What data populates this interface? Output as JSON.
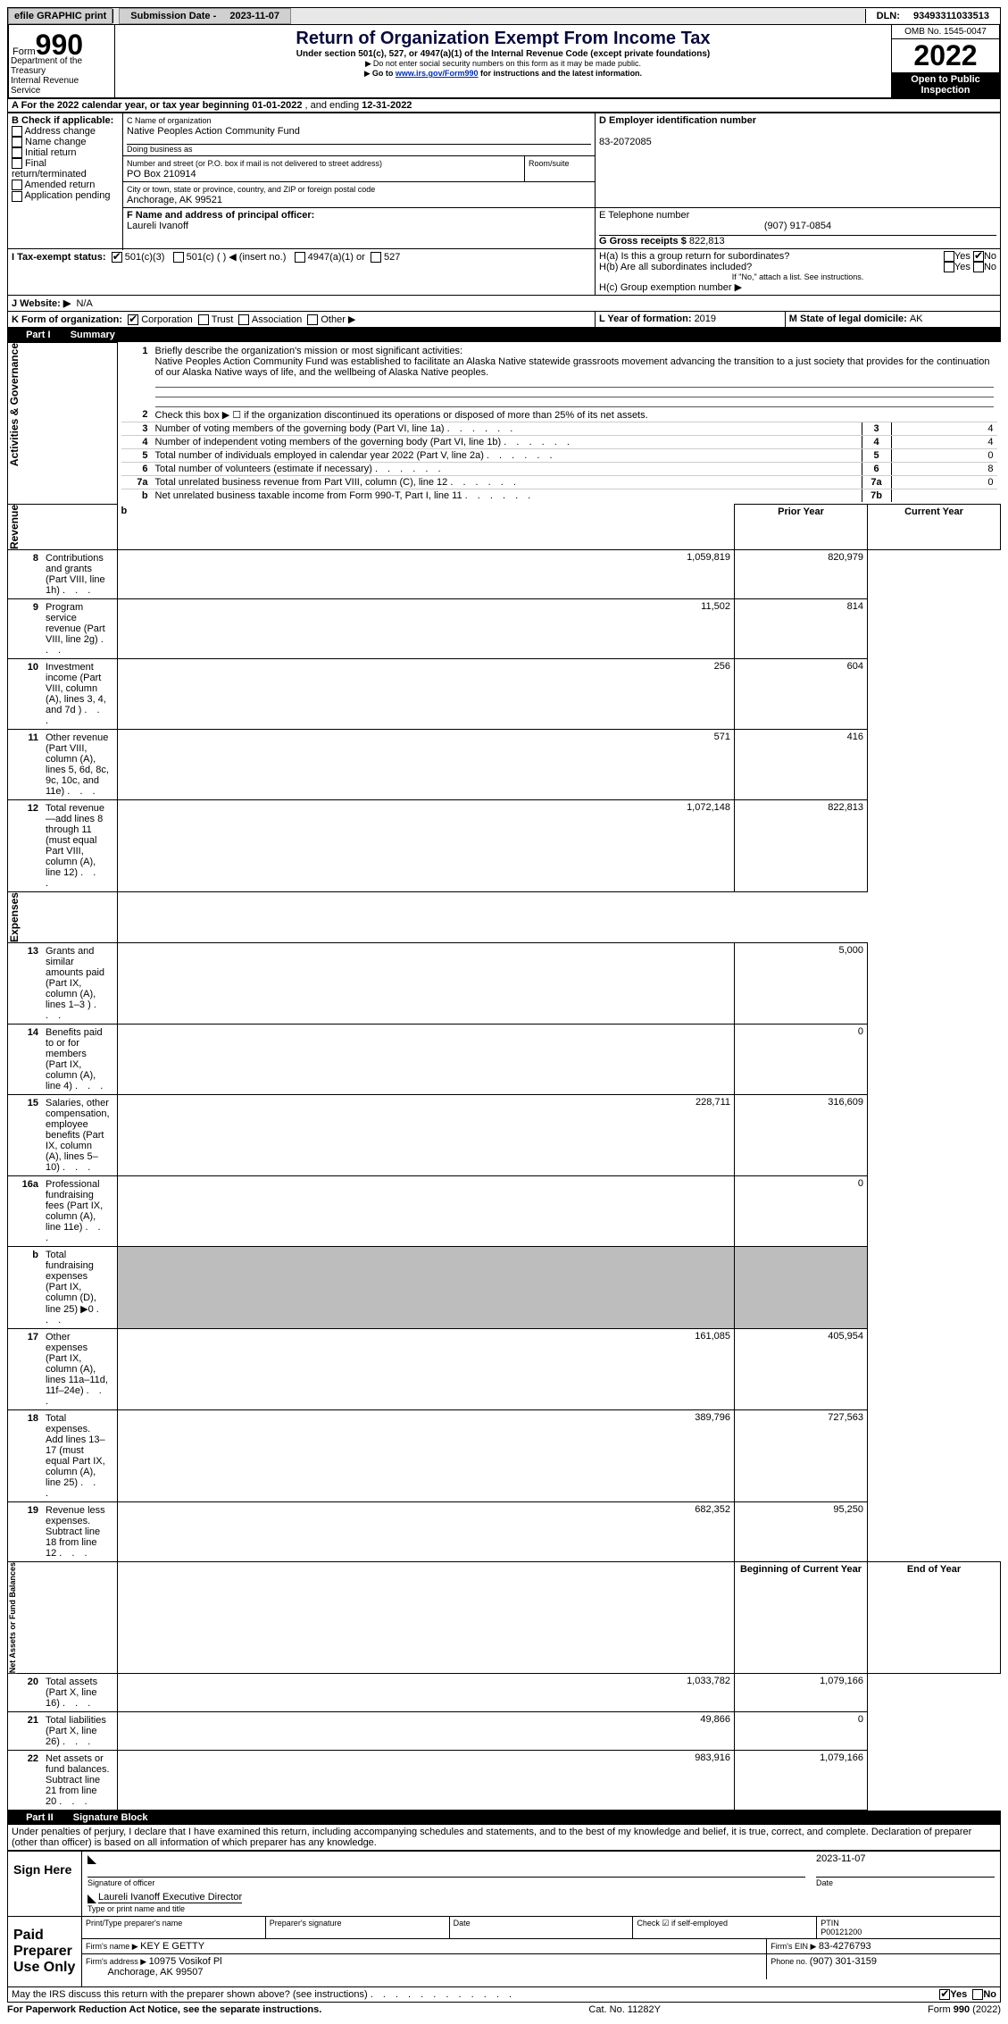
{
  "topbar": {
    "efile_label": "efile GRAPHIC print",
    "sub_label": "Submission Date - ",
    "sub_date": "2023-11-07",
    "dln_label": "DLN: ",
    "dln": "93493311033513"
  },
  "header": {
    "form_word": "Form",
    "form_num": "990",
    "dept": "Department of the Treasury\nInternal Revenue Service",
    "title": "Return of Organization Exempt From Income Tax",
    "subtitle": "Under section 501(c), 527, or 4947(a)(1) of the Internal Revenue Code (except private foundations)",
    "ssn_note": "Do not enter social security numbers on this form as it may be made public.",
    "goto_prefix": "Go to ",
    "goto_link": "www.irs.gov/Form990",
    "goto_suffix": " for instructions and the latest information.",
    "omb": "OMB No. 1545-0047",
    "year": "2022",
    "inspection": "Open to Public Inspection"
  },
  "periodline": {
    "a_label": "A For the 2022 calendar year, or tax year beginning ",
    "begin": "01-01-2022",
    "mid": " , and ending ",
    "end": "12-31-2022"
  },
  "boxB": {
    "title": "B Check if applicable:",
    "items": [
      "Address change",
      "Name change",
      "Initial return",
      "Final return/terminated",
      "Amended return",
      "Application pending"
    ]
  },
  "boxC": {
    "name_label": "C Name of organization",
    "org_name": "Native Peoples Action Community Fund",
    "dba_label": "Doing business as",
    "street_label": "Number and street (or P.O. box if mail is not delivered to street address)",
    "room_label": "Room/suite",
    "street": "PO Box 210914",
    "city_label": "City or town, state or province, country, and ZIP or foreign postal code",
    "city": "Anchorage, AK  99521"
  },
  "boxD": {
    "label": "D Employer identification number",
    "ein": "83-2072085"
  },
  "boxE": {
    "label": "E Telephone number",
    "phone": "(907) 917-0854"
  },
  "boxG": {
    "label": "G Gross receipts $ ",
    "val": "822,813"
  },
  "boxF": {
    "label": "F  Name and address of principal officer:",
    "name": "Laureli Ivanoff"
  },
  "boxH": {
    "ha_label": "H(a)  Is this a group return for subordinates?",
    "hb_label": "H(b)  Are all subordinates included?",
    "hb_note": "If \"No,\" attach a list. See instructions.",
    "hc_label": "H(c)  Group exemption number ▶",
    "yes": "Yes",
    "no": "No"
  },
  "boxI": {
    "label": "I  Tax-exempt status:",
    "opt1": "501(c)(3)",
    "opt2": "501(c) (  ) ◀ (insert no.)",
    "opt3": "4947(a)(1) or",
    "opt4": "527"
  },
  "boxJ": {
    "label": "J  Website: ▶",
    "val": "N/A"
  },
  "boxK": {
    "label": "K Form of organization:",
    "opts": [
      "Corporation",
      "Trust",
      "Association",
      "Other ▶"
    ]
  },
  "boxL": {
    "label": "L Year of formation: ",
    "val": "2019"
  },
  "boxM": {
    "label": "M State of legal domicile: ",
    "val": "AK"
  },
  "part1": {
    "label": "Part I",
    "title": "Summary"
  },
  "summary": {
    "q1_label": "Briefly describe the organization's mission or most significant activities:",
    "q1_text": "Native Peoples Action Community Fund was established to facilitate an Alaska Native statewide grassroots movement advancing the transition to a just society that provides for the continuation of our Alaska Native ways of life, and the wellbeing of Alaska Native peoples.",
    "q2": "Check this box ▶ ☐ if the organization discontinued its operations or disposed of more than 25% of its net assets.",
    "rows": [
      {
        "n": "3",
        "t": "Number of voting members of the governing body (Part VI, line 1a)",
        "k": "3",
        "v": "4"
      },
      {
        "n": "4",
        "t": "Number of independent voting members of the governing body (Part VI, line 1b)",
        "k": "4",
        "v": "4"
      },
      {
        "n": "5",
        "t": "Total number of individuals employed in calendar year 2022 (Part V, line 2a)",
        "k": "5",
        "v": "0"
      },
      {
        "n": "6",
        "t": "Total number of volunteers (estimate if necessary)",
        "k": "6",
        "v": "8"
      },
      {
        "n": "7a",
        "t": "Total unrelated business revenue from Part VIII, column (C), line 12",
        "k": "7a",
        "v": "0"
      },
      {
        "n": "b",
        "t": "Net unrelated business taxable income from Form 990-T, Part I, line 11",
        "k": "7b",
        "v": ""
      }
    ],
    "col_prior": "Prior Year",
    "col_current": "Current Year",
    "rev_label": "Revenue",
    "rev": [
      {
        "n": "8",
        "t": "Contributions and grants (Part VIII, line 1h)",
        "p": "1,059,819",
        "c": "820,979"
      },
      {
        "n": "9",
        "t": "Program service revenue (Part VIII, line 2g)",
        "p": "11,502",
        "c": "814"
      },
      {
        "n": "10",
        "t": "Investment income (Part VIII, column (A), lines 3, 4, and 7d )",
        "p": "256",
        "c": "604"
      },
      {
        "n": "11",
        "t": "Other revenue (Part VIII, column (A), lines 5, 6d, 8c, 9c, 10c, and 11e)",
        "p": "571",
        "c": "416"
      },
      {
        "n": "12",
        "t": "Total revenue—add lines 8 through 11 (must equal Part VIII, column (A), line 12)",
        "p": "1,072,148",
        "c": "822,813"
      }
    ],
    "exp_label": "Expenses",
    "exp": [
      {
        "n": "13",
        "t": "Grants and similar amounts paid (Part IX, column (A), lines 1–3 )",
        "p": "",
        "c": "5,000"
      },
      {
        "n": "14",
        "t": "Benefits paid to or for members (Part IX, column (A), line 4)",
        "p": "",
        "c": "0"
      },
      {
        "n": "15",
        "t": "Salaries, other compensation, employee benefits (Part IX, column (A), lines 5–10)",
        "p": "228,711",
        "c": "316,609"
      },
      {
        "n": "16a",
        "t": "Professional fundraising fees (Part IX, column (A), line 11e)",
        "p": "",
        "c": "0"
      },
      {
        "n": "b",
        "t": "Total fundraising expenses (Part IX, column (D), line 25) ▶0",
        "p": "shade",
        "c": "shade"
      },
      {
        "n": "17",
        "t": "Other expenses (Part IX, column (A), lines 11a–11d, 11f–24e)",
        "p": "161,085",
        "c": "405,954"
      },
      {
        "n": "18",
        "t": "Total expenses. Add lines 13–17 (must equal Part IX, column (A), line 25)",
        "p": "389,796",
        "c": "727,563"
      },
      {
        "n": "19",
        "t": "Revenue less expenses. Subtract line 18 from line 12",
        "p": "682,352",
        "c": "95,250"
      }
    ],
    "na_label": "Net Assets or Fund Balances",
    "col_boy": "Beginning of Current Year",
    "col_eoy": "End of Year",
    "na": [
      {
        "n": "20",
        "t": "Total assets (Part X, line 16)",
        "p": "1,033,782",
        "c": "1,079,166"
      },
      {
        "n": "21",
        "t": "Total liabilities (Part X, line 26)",
        "p": "49,866",
        "c": "0"
      },
      {
        "n": "22",
        "t": "Net assets or fund balances. Subtract line 21 from line 20",
        "p": "983,916",
        "c": "1,079,166"
      }
    ]
  },
  "part2": {
    "label": "Part II",
    "title": "Signature Block"
  },
  "penalty": "Under penalties of perjury, I declare that I have examined this return, including accompanying schedules and statements, and to the best of my knowledge and belief, it is true, correct, and complete. Declaration of preparer (other than officer) is based on all information of which preparer has any knowledge.",
  "sign": {
    "here": "Sign Here",
    "sig_label": "Signature of officer",
    "date_label": "Date",
    "sig_date": "2023-11-07",
    "name": "Laureli Ivanoff  Executive Director",
    "name_label": "Type or print name and title"
  },
  "paid": {
    "left": "Paid Preparer Use Only",
    "r1": [
      "Print/Type preparer's name",
      "Preparer's signature",
      "Date",
      "Check ☑ if self-employed",
      "PTIN\nP00121200"
    ],
    "r2_label": "Firm's name  ▶ ",
    "r2_val": "KEY E GETTY",
    "r2_ein_label": "Firm's EIN ▶ ",
    "r2_ein": "83-4276793",
    "r3_label": "Firm's address ▶ ",
    "r3_val1": "10975 Vosikof Pl",
    "r3_val2": "Anchorage, AK  99507",
    "r3_phone_label": "Phone no. ",
    "r3_phone": "(907) 301-3159"
  },
  "footer": {
    "discuss": "May the IRS discuss this return with the preparer shown above? (see instructions)",
    "yes": "Yes",
    "no": "No",
    "paperwork": "For Paperwork Reduction Act Notice, see the separate instructions.",
    "cat": "Cat. No. 11282Y",
    "form": "Form 990 (2022)"
  },
  "side": {
    "ag": "Activities & Governance"
  }
}
